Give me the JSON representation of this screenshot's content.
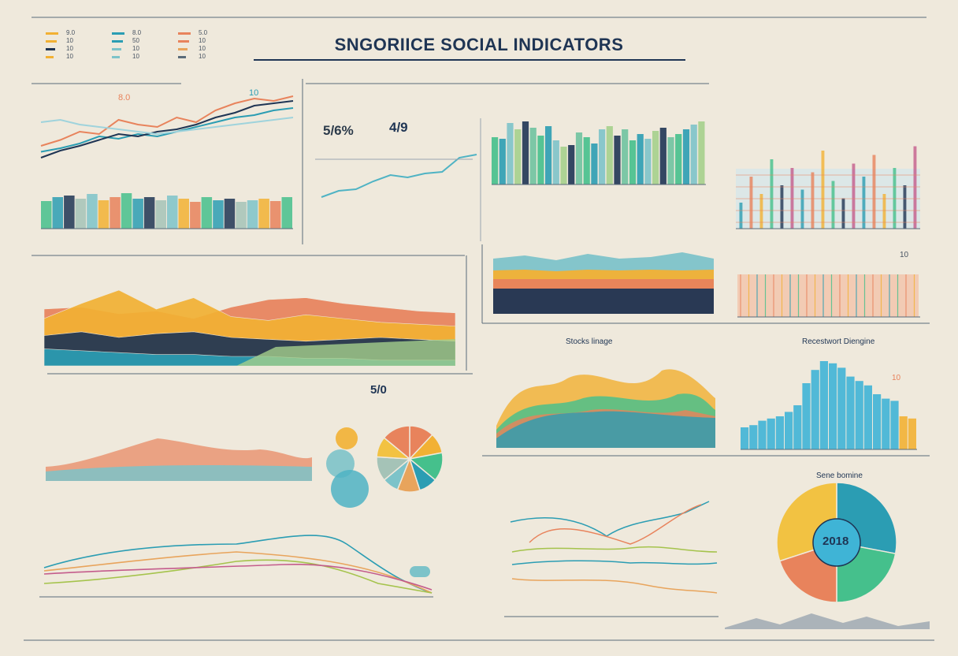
{
  "header": {
    "title": "SNGORIICE SOCIAL INDICATORS",
    "legend": [
      {
        "color": "#f2b134",
        "text": "9.0"
      },
      {
        "color": "#f2b134",
        "text": "10"
      },
      {
        "color": "#1f3554",
        "text": "10"
      },
      {
        "color": "#f2b134",
        "text": "10"
      },
      {
        "color": "#2b9db3",
        "text": "8.0"
      },
      {
        "color": "#2b9db3",
        "text": "50"
      },
      {
        "color": "#7dc3c9",
        "text": "10"
      },
      {
        "color": "#7dc3c9",
        "text": "10"
      },
      {
        "color": "#e8835c",
        "text": "5.0"
      },
      {
        "color": "#e8835c",
        "text": "10"
      },
      {
        "color": "#e8a45c",
        "text": "10"
      },
      {
        "color": "#5a6b7a",
        "text": "10"
      }
    ]
  },
  "panels": {
    "top_left": {
      "value1": "8.0",
      "value2": "10"
    },
    "top_mid": {
      "value1": "5/6%",
      "value2": "4/9"
    },
    "right_panel": {
      "value": "10"
    },
    "center_pie": {
      "value": "5/0"
    },
    "bottom_right": {
      "label": "Sene bomine",
      "value": "2018"
    },
    "mid_right": {
      "label1": "Stocks linage",
      "label2": "Recestwort Diengine",
      "value": "10"
    }
  },
  "chart_data": [
    {
      "type": "line",
      "x": [
        1,
        2,
        3,
        4,
        5,
        6,
        7,
        8,
        9,
        10,
        11,
        12,
        13,
        14
      ],
      "series": [
        {
          "color": "#e8835c",
          "values": [
            50,
            55,
            62,
            60,
            72,
            68,
            66,
            74,
            70,
            80,
            86,
            90,
            88,
            92
          ]
        },
        {
          "color": "#2b9db3",
          "values": [
            45,
            48,
            52,
            58,
            56,
            60,
            58,
            62,
            66,
            70,
            74,
            76,
            80,
            82
          ]
        },
        {
          "color": "#1f3554",
          "values": [
            40,
            46,
            50,
            55,
            60,
            58,
            62,
            64,
            68,
            74,
            78,
            84,
            86,
            88
          ]
        },
        {
          "color": "#9fd3dc",
          "values": [
            70,
            72,
            68,
            66,
            64,
            62,
            60,
            62,
            64,
            66,
            68,
            70,
            72,
            74
          ]
        }
      ],
      "bars": [
        35,
        40,
        42,
        38,
        44,
        36,
        40,
        45,
        38,
        40,
        36,
        42,
        38,
        34,
        40,
        36,
        38,
        34,
        36,
        38,
        35,
        40
      ]
    },
    {
      "type": "line",
      "x": [
        1,
        2,
        3,
        4,
        5,
        6,
        7,
        8,
        9,
        10
      ],
      "series": [
        {
          "color": "#4fb3c4",
          "values": [
            20,
            28,
            30,
            40,
            48,
            45,
            50,
            52,
            70,
            74
          ]
        }
      ]
    },
    {
      "type": "bar",
      "values": [
        60,
        58,
        78,
        70,
        80,
        72,
        62,
        74,
        56,
        48,
        50,
        66,
        60,
        52,
        70,
        74,
        62,
        70,
        56,
        64,
        58,
        68,
        72,
        60,
        64,
        70,
        76,
        80
      ]
    },
    {
      "type": "bar",
      "values": [
        30,
        60,
        40,
        80,
        50,
        70,
        45,
        65,
        90,
        55,
        35,
        75,
        60,
        85,
        40,
        70,
        50,
        95
      ]
    },
    {
      "type": "area",
      "series": [
        {
          "color": "#e8835c",
          "values": [
            60,
            62,
            55,
            58,
            50,
            62,
            70,
            72,
            66,
            62,
            58,
            56
          ]
        },
        {
          "color": "#f2b134",
          "values": [
            50,
            66,
            80,
            60,
            72,
            52,
            48,
            54,
            50,
            46,
            44,
            42
          ]
        },
        {
          "color": "#1f3554",
          "values": [
            32,
            36,
            30,
            34,
            36,
            30,
            28,
            26,
            28,
            30,
            28,
            26
          ]
        },
        {
          "color": "#2b9db3",
          "values": [
            18,
            16,
            14,
            12,
            12,
            10,
            10,
            8,
            8,
            6,
            6,
            6
          ]
        }
      ]
    },
    {
      "type": "area",
      "series": [
        {
          "color": "#7dc3c9",
          "values": [
            70,
            74,
            68,
            76,
            70,
            72,
            78,
            70
          ]
        },
        {
          "color": "#f2b134",
          "values": [
            55,
            56,
            54,
            56,
            55,
            56,
            55,
            56
          ]
        },
        {
          "color": "#e8835c",
          "values": [
            44,
            44,
            44,
            44,
            44,
            44,
            44,
            44
          ]
        },
        {
          "color": "#1f3554",
          "values": [
            32,
            32,
            32,
            32,
            32,
            32,
            32,
            32
          ]
        }
      ]
    },
    {
      "type": "bar",
      "values": [
        20,
        22,
        26,
        28,
        30,
        34,
        40,
        60,
        72,
        80,
        78,
        74,
        66,
        62,
        58,
        50,
        46,
        44,
        30,
        28
      ]
    },
    {
      "type": "pie",
      "values": [
        28,
        22,
        20,
        30
      ],
      "colors": [
        "#2b9db3",
        "#45c08c",
        "#e8835c",
        "#f2c242"
      ]
    },
    {
      "type": "pie",
      "values": [
        12,
        10,
        14,
        9,
        11,
        8,
        12,
        10,
        14
      ],
      "colors": [
        "#e8835c",
        "#f2b134",
        "#45c08c",
        "#2b9db3",
        "#e8a45c",
        "#7dc3c9",
        "#a5c3b7",
        "#f2c242",
        "#e8835c"
      ]
    }
  ]
}
